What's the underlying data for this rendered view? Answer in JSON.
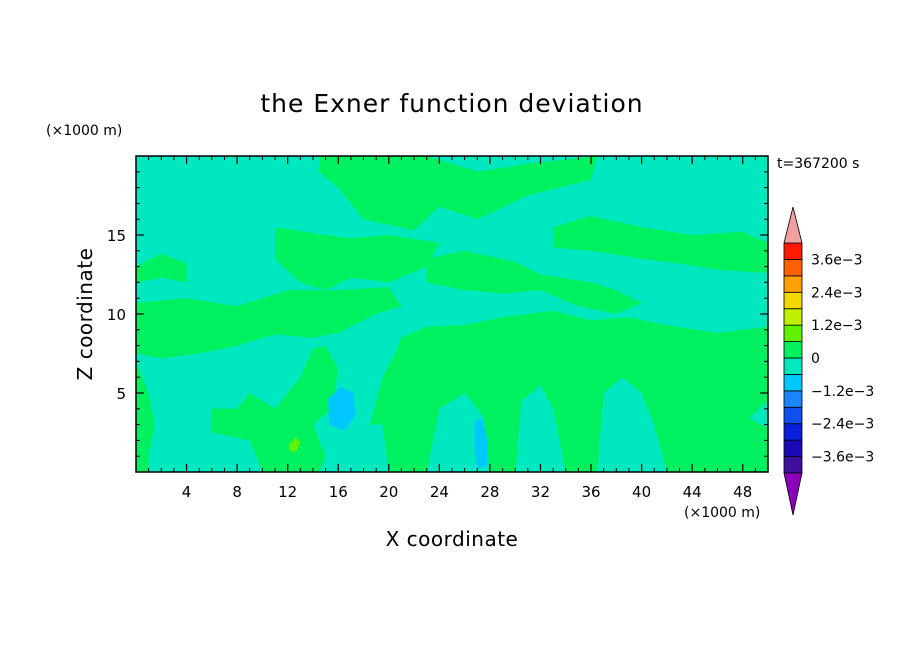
{
  "chart_data": {
    "type": "heatmap",
    "title": "the Exner function deviation",
    "xlabel": "X coordinate",
    "ylabel": "Z coordinate",
    "x_unit": "(×1000 m)",
    "y_unit": "(×1000 m)",
    "time_label": "t=367200 s",
    "xlim": [
      0,
      50
    ],
    "ylim": [
      0,
      20
    ],
    "x_ticks": [
      4,
      8,
      12,
      16,
      20,
      24,
      28,
      32,
      36,
      40,
      44,
      48
    ],
    "y_ticks": [
      5,
      10,
      15
    ],
    "colorbar": {
      "levels": [
        -0.0042,
        -0.0036,
        -0.003,
        -0.0024,
        -0.0018,
        -0.0012,
        -0.0006,
        0,
        0.0006,
        0.0012,
        0.0018,
        0.0024,
        0.003,
        0.0036,
        0.0042
      ],
      "colors": [
        "#8b00b8",
        "#3f0f9f",
        "#1a0ab5",
        "#0a1edb",
        "#0f4ff0",
        "#1a85ff",
        "#00c8ff",
        "#00e8c0",
        "#00f060",
        "#60f000",
        "#c0f000",
        "#f0d800",
        "#ffa000",
        "#ff6000",
        "#ff1a00",
        "#f0a0a0"
      ],
      "labels": [
        "3.6e−3",
        "2.4e−3",
        "1.2e−3",
        "0",
        "−1.2e−3",
        "−2.4e−3",
        "−3.6e−3"
      ],
      "label_values": [
        0.0036,
        0.0024,
        0.0012,
        0,
        -0.0012,
        -0.0024,
        -0.0036
      ]
    },
    "background_value": -0.0003,
    "regions_value": 0.0003,
    "regions": [
      [
        [
          14.5,
          20
        ],
        [
          23,
          20
        ],
        [
          27,
          19
        ],
        [
          31,
          19.5
        ],
        [
          36.5,
          20
        ],
        [
          36,
          18.5
        ],
        [
          31,
          17.5
        ],
        [
          27,
          16
        ],
        [
          24,
          16.8
        ],
        [
          22,
          15.3
        ],
        [
          18,
          16
        ],
        [
          16,
          18
        ],
        [
          14.5,
          19
        ]
      ],
      [
        [
          11,
          15.5
        ],
        [
          15,
          15
        ],
        [
          17,
          14.8
        ],
        [
          20,
          15
        ],
        [
          24,
          14.5
        ],
        [
          23,
          13
        ],
        [
          20,
          12
        ],
        [
          17,
          12.3
        ],
        [
          15,
          11.5
        ],
        [
          13,
          12
        ],
        [
          11,
          13.5
        ]
      ],
      [
        [
          0,
          13
        ],
        [
          2,
          13.8
        ],
        [
          4,
          13.2
        ],
        [
          4,
          12
        ],
        [
          2,
          12.3
        ],
        [
          0,
          12
        ]
      ],
      [
        [
          0,
          10.7
        ],
        [
          4,
          11
        ],
        [
          8,
          10.5
        ],
        [
          12,
          11.5
        ],
        [
          16,
          11.5
        ],
        [
          20,
          11.7
        ],
        [
          21,
          10.5
        ],
        [
          19,
          10
        ],
        [
          16,
          8.8
        ],
        [
          14,
          8.5
        ],
        [
          11,
          8.7
        ],
        [
          8,
          8
        ],
        [
          5,
          7.5
        ],
        [
          2,
          7.2
        ],
        [
          0,
          7.5
        ]
      ],
      [
        [
          23,
          13.5
        ],
        [
          26,
          14
        ],
        [
          30,
          13.3
        ],
        [
          32,
          12.5
        ],
        [
          36,
          12
        ],
        [
          38,
          11.5
        ],
        [
          40,
          10.7
        ],
        [
          38,
          10
        ],
        [
          35,
          10.5
        ],
        [
          32,
          11.5
        ],
        [
          29,
          11.3
        ],
        [
          26,
          11.5
        ],
        [
          23,
          12
        ]
      ],
      [
        [
          33,
          15.5
        ],
        [
          36,
          16.2
        ],
        [
          40,
          15.5
        ],
        [
          44,
          15
        ],
        [
          48,
          15.2
        ],
        [
          50,
          14.5
        ],
        [
          50,
          12.6
        ],
        [
          46,
          12.8
        ],
        [
          43,
          13.2
        ],
        [
          40,
          13.5
        ],
        [
          36,
          14
        ],
        [
          33,
          14.2
        ]
      ],
      [
        [
          21,
          8.5
        ],
        [
          23,
          9.2
        ],
        [
          26,
          9.3
        ],
        [
          29,
          9.8
        ],
        [
          33,
          10.2
        ],
        [
          36,
          9.6
        ],
        [
          39,
          9.8
        ],
        [
          42,
          9.3
        ],
        [
          46,
          8.8
        ],
        [
          50,
          9.2
        ],
        [
          50,
          4.5
        ],
        [
          48,
          3
        ],
        [
          47,
          0
        ],
        [
          42,
          0
        ],
        [
          41,
          3
        ],
        [
          40,
          5
        ],
        [
          38.5,
          6
        ],
        [
          37,
          5
        ],
        [
          36.5,
          0
        ],
        [
          34,
          0
        ],
        [
          33,
          4
        ],
        [
          32,
          5.5
        ],
        [
          30.5,
          4.5
        ],
        [
          30,
          0
        ],
        [
          28,
          0
        ],
        [
          27.5,
          3.5
        ],
        [
          26,
          5
        ],
        [
          24,
          4
        ],
        [
          23,
          0
        ],
        [
          20,
          0
        ],
        [
          19.5,
          3
        ],
        [
          18.5,
          3
        ],
        [
          19.5,
          6
        ],
        [
          20.5,
          7.5
        ]
      ],
      [
        [
          11,
          4
        ],
        [
          13,
          6
        ],
        [
          14,
          7.8
        ],
        [
          15,
          8
        ],
        [
          16,
          6.5
        ],
        [
          15.5,
          4
        ],
        [
          14,
          3
        ],
        [
          15,
          1
        ],
        [
          14.5,
          0
        ],
        [
          10,
          0
        ],
        [
          9,
          2
        ],
        [
          6,
          2.5
        ],
        [
          6,
          4
        ],
        [
          8,
          4
        ],
        [
          9,
          5
        ]
      ],
      [
        [
          0,
          7
        ],
        [
          1,
          5
        ],
        [
          1.5,
          3
        ],
        [
          1,
          1
        ],
        [
          1,
          0
        ],
        [
          0,
          0
        ]
      ],
      [
        [
          47,
          3
        ],
        [
          48.5,
          3.4
        ],
        [
          50,
          2.8
        ],
        [
          50,
          0
        ],
        [
          47,
          0
        ]
      ]
    ],
    "minor_regions": [
      {
        "value": -0.0009,
        "points": [
          [
            15.2,
            4.6
          ],
          [
            16.2,
            5.4
          ],
          [
            17.2,
            5
          ],
          [
            17.4,
            3.6
          ],
          [
            16.5,
            2.6
          ],
          [
            15.3,
            3
          ]
        ]
      },
      {
        "value": -0.0009,
        "points": [
          [
            26.8,
            3.2
          ],
          [
            27.4,
            3.4
          ],
          [
            27.8,
            2
          ],
          [
            27.8,
            0.4
          ],
          [
            27,
            0.2
          ],
          [
            26.8,
            1.6
          ]
        ]
      },
      {
        "value": 0.0009,
        "points": [
          [
            12.1,
            1.7
          ],
          [
            12.6,
            2.2
          ],
          [
            13,
            1.9
          ],
          [
            12.7,
            1.3
          ],
          [
            12.2,
            1.3
          ]
        ]
      }
    ]
  }
}
